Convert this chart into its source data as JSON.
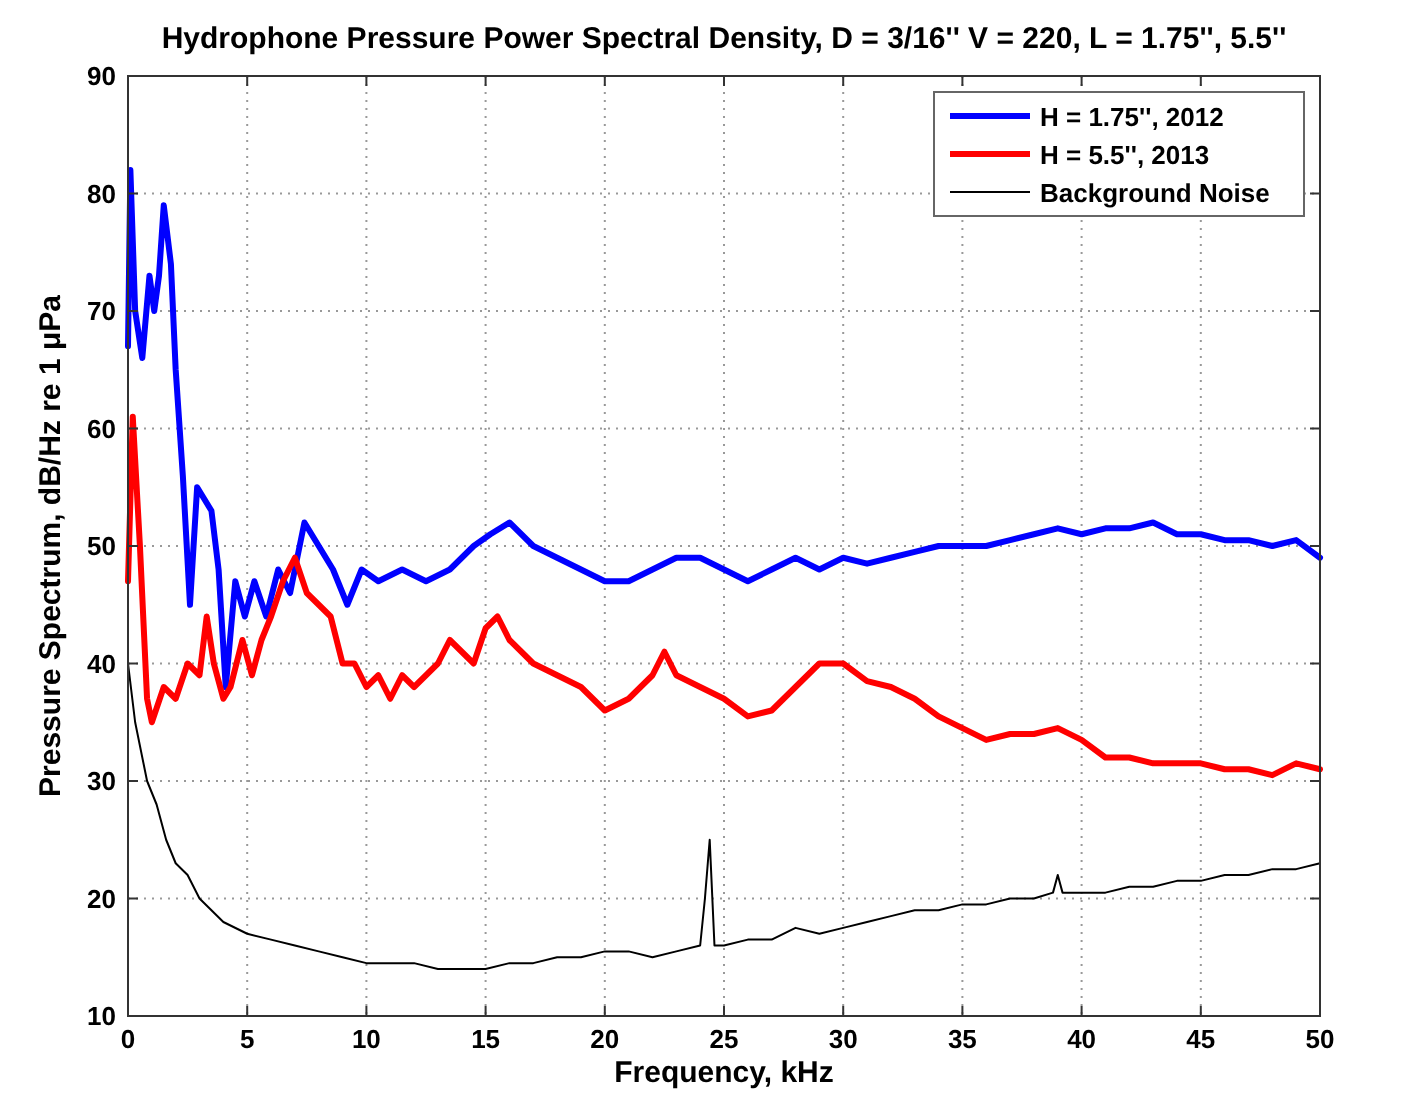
{
  "chart_data": {
    "type": "line",
    "title": "Hydrophone Pressure Power Spectral Density, D = 3/16'' V = 220, L = 1.75'', 5.5''",
    "xlabel": "Frequency, kHz",
    "ylabel": "Pressure Spectrum, dB/Hz re 1 μPa",
    "xlim": [
      0,
      50
    ],
    "ylim": [
      10,
      90
    ],
    "xticks": [
      0,
      5,
      10,
      15,
      20,
      25,
      30,
      35,
      40,
      45,
      50
    ],
    "yticks": [
      10,
      20,
      30,
      40,
      50,
      60,
      70,
      80,
      90
    ],
    "grid": true,
    "legend": "top right",
    "line_style": "solid",
    "series": [
      {
        "name": "H = 1.75'', 2012",
        "color": "#0000ff",
        "x": [
          0,
          0.1,
          0.3,
          0.6,
          0.9,
          1.1,
          1.3,
          1.5,
          1.8,
          2.0,
          2.3,
          2.6,
          2.9,
          3.2,
          3.5,
          3.8,
          4.1,
          4.5,
          4.9,
          5.3,
          5.8,
          6.3,
          6.8,
          7.4,
          8.0,
          8.6,
          9.2,
          9.8,
          10.5,
          11.5,
          12.5,
          13.5,
          14.5,
          15.2,
          16,
          17,
          18,
          19,
          20,
          21,
          22,
          23,
          24,
          25,
          26,
          27,
          28,
          29,
          30,
          31,
          32,
          33,
          34,
          35,
          36,
          37,
          38,
          39,
          40,
          41,
          42,
          43,
          44,
          45,
          46,
          47,
          48,
          49,
          50
        ],
        "values": [
          67,
          82,
          70,
          66,
          73,
          70,
          73,
          79,
          74,
          65,
          56,
          45,
          55,
          54,
          53,
          48,
          38,
          47,
          44,
          47,
          44,
          48,
          46,
          52,
          50,
          48,
          45,
          48,
          47,
          48,
          47,
          48,
          50,
          51,
          52,
          50,
          49,
          48,
          47,
          47,
          48,
          49,
          49,
          48,
          47,
          48,
          49,
          48,
          49,
          48.5,
          49,
          49.5,
          50,
          50,
          50,
          50.5,
          51,
          51.5,
          51,
          51.5,
          51.5,
          52,
          51,
          51,
          50.5,
          50.5,
          50,
          50.5,
          49
        ]
      },
      {
        "name": "H = 5.5'', 2013",
        "color": "#ff0000",
        "x": [
          0,
          0.2,
          0.5,
          0.8,
          1.0,
          1.5,
          2.0,
          2.5,
          3.0,
          3.3,
          3.6,
          4.0,
          4.3,
          4.8,
          5.2,
          5.6,
          6.0,
          6.5,
          7.0,
          7.5,
          8.0,
          8.5,
          9.0,
          9.5,
          10,
          10.5,
          11,
          11.5,
          12,
          13,
          13.5,
          14,
          14.5,
          15,
          15.5,
          16,
          17,
          18,
          19,
          20,
          21,
          22,
          22.5,
          23,
          24,
          25,
          26,
          27,
          28,
          29,
          30,
          31,
          32,
          33,
          34,
          35,
          36,
          37,
          38,
          39,
          40,
          41,
          42,
          43,
          44,
          45,
          46,
          47,
          48,
          49,
          50
        ],
        "values": [
          47,
          61,
          50,
          37,
          35,
          38,
          37,
          40,
          39,
          44,
          40,
          37,
          38,
          42,
          39,
          42,
          44,
          47,
          49,
          46,
          45,
          44,
          40,
          40,
          38,
          39,
          37,
          39,
          38,
          40,
          42,
          41,
          40,
          43,
          44,
          42,
          40,
          39,
          38,
          36,
          37,
          39,
          41,
          39,
          38,
          37,
          35.5,
          36,
          38,
          40,
          40,
          38.5,
          38,
          37,
          35.5,
          34.5,
          33.5,
          34,
          34,
          34.5,
          33.5,
          32,
          32,
          31.5,
          31.5,
          31.5,
          31,
          31,
          30.5,
          31.5,
          31
        ]
      },
      {
        "name": "Background Noise",
        "color": "#000000",
        "x": [
          0,
          0.3,
          0.8,
          1.2,
          1.6,
          2.0,
          2.5,
          3.0,
          3.5,
          4,
          5,
          6,
          7,
          8,
          9,
          10,
          11,
          12,
          13,
          14,
          15,
          16,
          17,
          18,
          19,
          20,
          21,
          22,
          23,
          24,
          24.2,
          24.4,
          24.6,
          25,
          26,
          27,
          28,
          29,
          30,
          31,
          32,
          33,
          34,
          35,
          36,
          37,
          38,
          38.8,
          39,
          39.2,
          40,
          41,
          42,
          43,
          44,
          45,
          46,
          47,
          48,
          49,
          50
        ],
        "values": [
          40,
          35,
          30,
          28,
          25,
          23,
          22,
          20,
          19,
          18,
          17,
          16.5,
          16,
          15.5,
          15,
          14.5,
          14.5,
          14.5,
          14,
          14,
          14,
          14.5,
          14.5,
          15,
          15,
          15.5,
          15.5,
          15,
          15.5,
          16,
          20,
          25,
          16,
          16,
          16.5,
          16.5,
          17.5,
          17,
          17.5,
          18,
          18.5,
          19,
          19,
          19.5,
          19.5,
          20,
          20,
          20.5,
          22,
          20.5,
          20.5,
          20.5,
          21,
          21,
          21.5,
          21.5,
          22,
          22,
          22.5,
          22.5,
          23
        ]
      }
    ]
  }
}
